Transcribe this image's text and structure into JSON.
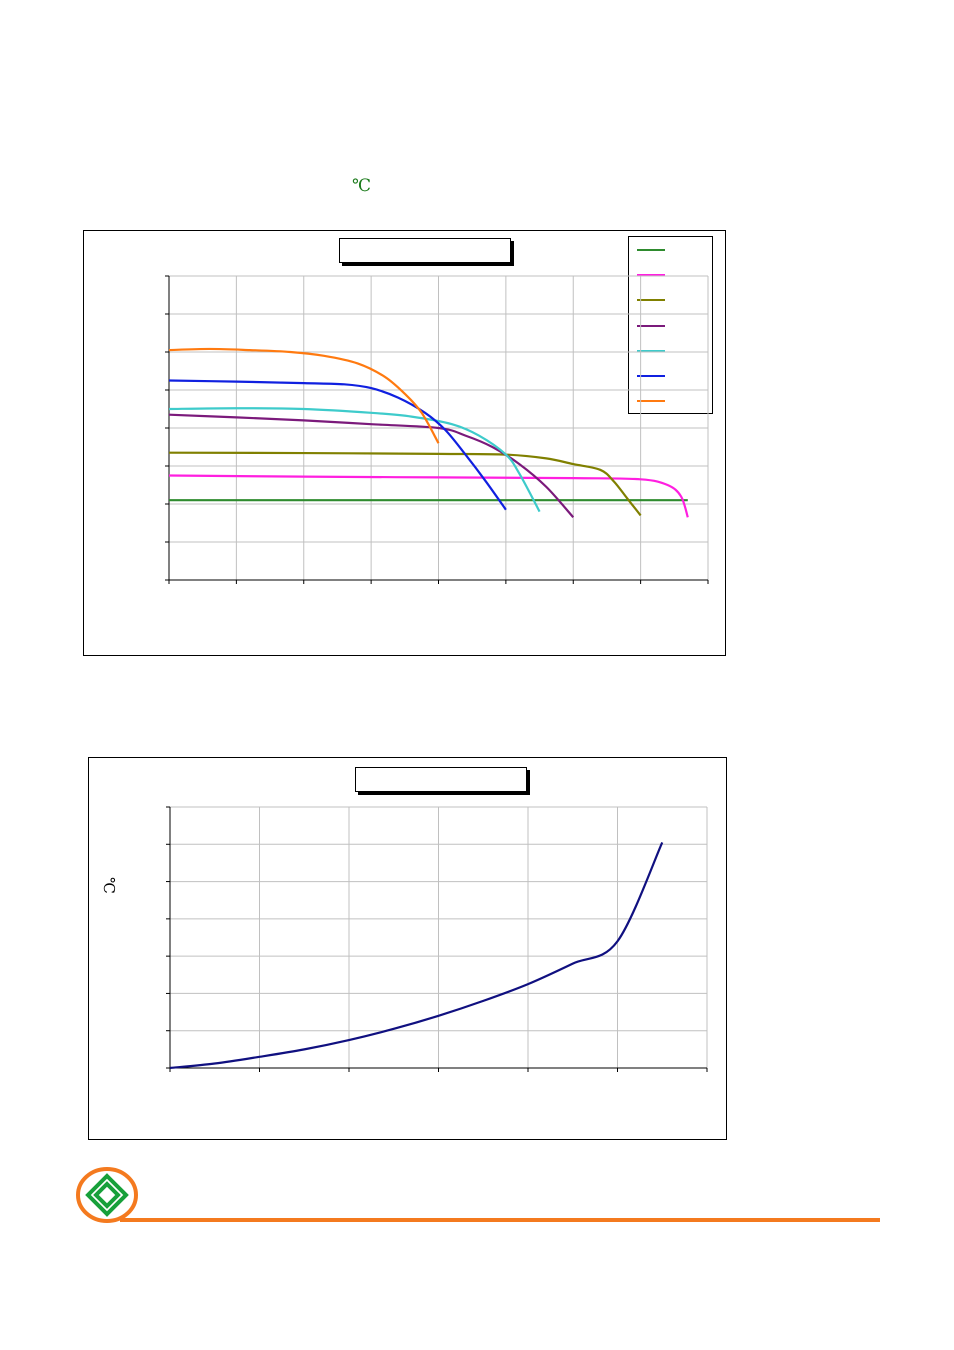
{
  "page": {
    "unit_note": "℃"
  },
  "chart1": {
    "title": "",
    "colors": {
      "green": "#2e8b2e",
      "magenta": "#ff1fe0",
      "olive": "#808000",
      "purple": "#7b1a7b",
      "cyan": "#3ecbcb",
      "blue": "#1020e0",
      "orange": "#ff7a10"
    },
    "legend": [
      "",
      "",
      "",
      "",
      "",
      "",
      ""
    ]
  },
  "chart2": {
    "title": "",
    "ylabel": "℃",
    "line_color": "#101080"
  },
  "chart_data": [
    {
      "type": "line",
      "title": "",
      "xlim": [
        0,
        8
      ],
      "ylim": [
        0,
        8
      ],
      "series": [
        {
          "color": "#2e8b2e",
          "x": [
            0,
            7.7
          ],
          "y": [
            2.1,
            2.1
          ]
        },
        {
          "color": "#ff1fe0",
          "x": [
            0,
            2,
            4,
            6,
            7.0,
            7.4,
            7.6,
            7.7
          ],
          "y": [
            2.75,
            2.72,
            2.7,
            2.68,
            2.65,
            2.5,
            2.2,
            1.65
          ]
        },
        {
          "color": "#808000",
          "x": [
            0,
            2,
            4,
            5.0,
            5.6,
            6.0,
            6.4,
            6.6,
            6.8,
            7.0
          ],
          "y": [
            3.35,
            3.34,
            3.32,
            3.3,
            3.2,
            3.05,
            2.9,
            2.6,
            2.15,
            1.7
          ]
        },
        {
          "color": "#7b1a7b",
          "x": [
            0,
            1,
            2,
            3,
            4.0,
            4.4,
            4.8,
            5.2,
            5.6,
            6.0
          ],
          "y": [
            4.35,
            4.28,
            4.2,
            4.1,
            4.0,
            3.8,
            3.5,
            3.05,
            2.45,
            1.65
          ]
        },
        {
          "color": "#3ecbcb",
          "x": [
            0,
            1,
            2,
            3,
            3.6,
            4.2,
            4.6,
            5.0,
            5.2,
            5.5
          ],
          "y": [
            4.5,
            4.52,
            4.5,
            4.4,
            4.3,
            4.1,
            3.8,
            3.3,
            2.8,
            1.8
          ]
        },
        {
          "color": "#1020e0",
          "x": [
            0,
            1,
            2,
            2.6,
            3.0,
            3.4,
            3.8,
            4.1,
            4.4,
            4.7,
            5.0
          ],
          "y": [
            5.25,
            5.22,
            5.18,
            5.15,
            5.05,
            4.8,
            4.4,
            3.95,
            3.3,
            2.6,
            1.85
          ]
        },
        {
          "color": "#ff7a10",
          "x": [
            0,
            0.6,
            1.2,
            1.8,
            2.3,
            2.8,
            3.2,
            3.5,
            3.75,
            4.0
          ],
          "y": [
            6.05,
            6.08,
            6.05,
            6.0,
            5.9,
            5.7,
            5.35,
            4.9,
            4.4,
            3.6
          ]
        }
      ]
    },
    {
      "type": "line",
      "title": "",
      "ylabel": "℃",
      "xlim": [
        0,
        6
      ],
      "ylim": [
        0,
        7
      ],
      "series": [
        {
          "color": "#101080",
          "x": [
            0,
            0.5,
            1.0,
            1.5,
            2.0,
            2.5,
            3.0,
            3.5,
            4.0,
            4.5,
            5.0,
            5.5
          ],
          "y": [
            0,
            0.12,
            0.3,
            0.5,
            0.75,
            1.05,
            1.4,
            1.8,
            2.25,
            2.8,
            3.4,
            6.05
          ]
        }
      ]
    }
  ]
}
